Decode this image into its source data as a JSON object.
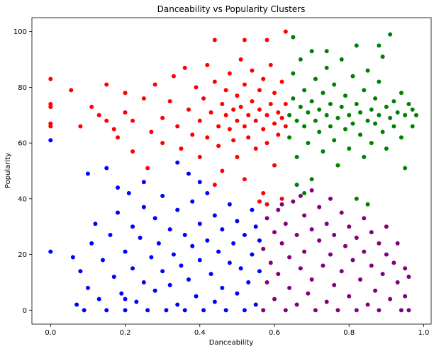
{
  "chart_data": {
    "type": "scatter",
    "title": "Danceability vs Popularity Clusters",
    "xlabel": "Danceability",
    "ylabel": "Popularity",
    "xlim": [
      -0.05,
      1.02
    ],
    "ylim": [
      -5,
      105
    ],
    "xticks": [
      0.0,
      0.2,
      0.4,
      0.6,
      0.8,
      1.0
    ],
    "xtick_labels": [
      "0.0",
      "0.2",
      "0.4",
      "0.6",
      "0.8",
      "1.0"
    ],
    "yticks": [
      0,
      20,
      40,
      60,
      80,
      100
    ],
    "ytick_labels": [
      "0",
      "20",
      "40",
      "60",
      "80",
      "100"
    ],
    "grid": false,
    "legend": "none",
    "series": [
      {
        "color": "#ff0000",
        "points": [
          [
            0.0,
            83
          ],
          [
            0.0,
            74
          ],
          [
            0.0,
            73
          ],
          [
            0.0,
            67
          ],
          [
            0.0,
            66
          ],
          [
            0.055,
            79
          ],
          [
            0.08,
            66
          ],
          [
            0.11,
            73
          ],
          [
            0.13,
            70
          ],
          [
            0.15,
            68
          ],
          [
            0.15,
            81
          ],
          [
            0.17,
            65
          ],
          [
            0.18,
            62
          ],
          [
            0.2,
            71
          ],
          [
            0.2,
            78
          ],
          [
            0.22,
            68
          ],
          [
            0.22,
            57
          ],
          [
            0.25,
            76
          ],
          [
            0.26,
            51
          ],
          [
            0.27,
            64
          ],
          [
            0.28,
            81
          ],
          [
            0.3,
            69
          ],
          [
            0.3,
            60
          ],
          [
            0.32,
            75
          ],
          [
            0.33,
            84
          ],
          [
            0.34,
            66
          ],
          [
            0.35,
            58
          ],
          [
            0.36,
            87
          ],
          [
            0.37,
            72
          ],
          [
            0.38,
            63
          ],
          [
            0.39,
            80
          ],
          [
            0.4,
            68
          ],
          [
            0.4,
            55
          ],
          [
            0.41,
            76
          ],
          [
            0.42,
            88
          ],
          [
            0.42,
            62
          ],
          [
            0.43,
            71
          ],
          [
            0.44,
            45
          ],
          [
            0.44,
            82
          ],
          [
            0.45,
            66
          ],
          [
            0.45,
            59
          ],
          [
            0.46,
            74
          ],
          [
            0.46,
            50
          ],
          [
            0.47,
            70
          ],
          [
            0.47,
            79
          ],
          [
            0.48,
            65
          ],
          [
            0.48,
            85
          ],
          [
            0.49,
            72
          ],
          [
            0.49,
            61
          ],
          [
            0.5,
            68
          ],
          [
            0.5,
            77
          ],
          [
            0.5,
            55
          ],
          [
            0.51,
            73
          ],
          [
            0.51,
            90
          ],
          [
            0.52,
            66
          ],
          [
            0.52,
            81
          ],
          [
            0.52,
            47
          ],
          [
            0.53,
            70
          ],
          [
            0.53,
            62
          ],
          [
            0.54,
            75
          ],
          [
            0.54,
            86
          ],
          [
            0.55,
            68
          ],
          [
            0.55,
            58
          ],
          [
            0.56,
            72
          ],
          [
            0.56,
            79
          ],
          [
            0.57,
            65
          ],
          [
            0.57,
            83
          ],
          [
            0.57,
            42
          ],
          [
            0.58,
            70
          ],
          [
            0.58,
            60
          ],
          [
            0.59,
            74
          ],
          [
            0.59,
            88
          ],
          [
            0.6,
            67
          ],
          [
            0.6,
            78
          ],
          [
            0.6,
            52
          ],
          [
            0.61,
            71
          ],
          [
            0.61,
            63
          ],
          [
            0.62,
            69
          ],
          [
            0.62,
            82
          ],
          [
            0.62,
            40
          ],
          [
            0.63,
            66
          ],
          [
            0.63,
            74
          ],
          [
            0.63,
            100
          ],
          [
            0.44,
            97
          ],
          [
            0.52,
            97
          ],
          [
            0.58,
            97
          ],
          [
            0.56,
            39
          ],
          [
            0.58,
            38
          ]
        ]
      },
      {
        "color": "#008000",
        "points": [
          [
            0.64,
            70
          ],
          [
            0.64,
            62
          ],
          [
            0.65,
            76
          ],
          [
            0.65,
            85
          ],
          [
            0.66,
            68
          ],
          [
            0.66,
            55
          ],
          [
            0.67,
            73
          ],
          [
            0.67,
            90
          ],
          [
            0.68,
            66
          ],
          [
            0.68,
            79
          ],
          [
            0.69,
            71
          ],
          [
            0.69,
            60
          ],
          [
            0.7,
            75
          ],
          [
            0.7,
            93
          ],
          [
            0.71,
            68
          ],
          [
            0.71,
            83
          ],
          [
            0.72,
            64
          ],
          [
            0.72,
            72
          ],
          [
            0.73,
            78
          ],
          [
            0.73,
            57
          ],
          [
            0.74,
            70
          ],
          [
            0.74,
            87
          ],
          [
            0.75,
            66
          ],
          [
            0.75,
            74
          ],
          [
            0.76,
            61
          ],
          [
            0.76,
            81
          ],
          [
            0.77,
            69
          ],
          [
            0.77,
            52
          ],
          [
            0.78,
            73
          ],
          [
            0.78,
            90
          ],
          [
            0.79,
            65
          ],
          [
            0.79,
            77
          ],
          [
            0.8,
            70
          ],
          [
            0.8,
            58
          ],
          [
            0.81,
            84
          ],
          [
            0.81,
            67
          ],
          [
            0.82,
            74
          ],
          [
            0.82,
            95
          ],
          [
            0.83,
            63
          ],
          [
            0.83,
            71
          ],
          [
            0.84,
            79
          ],
          [
            0.84,
            55
          ],
          [
            0.85,
            68
          ],
          [
            0.85,
            86
          ],
          [
            0.86,
            72
          ],
          [
            0.86,
            60
          ],
          [
            0.87,
            76
          ],
          [
            0.87,
            67
          ],
          [
            0.88,
            82
          ],
          [
            0.88,
            70
          ],
          [
            0.89,
            64
          ],
          [
            0.89,
            91
          ],
          [
            0.9,
            73
          ],
          [
            0.9,
            58
          ],
          [
            0.91,
            69
          ],
          [
            0.91,
            99
          ],
          [
            0.92,
            75
          ],
          [
            0.92,
            66
          ],
          [
            0.93,
            71
          ],
          [
            0.94,
            62
          ],
          [
            0.94,
            78
          ],
          [
            0.95,
            70
          ],
          [
            0.95,
            51
          ],
          [
            0.96,
            74
          ],
          [
            0.97,
            66
          ],
          [
            0.97,
            72
          ],
          [
            0.98,
            70
          ],
          [
            0.66,
            45
          ],
          [
            0.68,
            42
          ],
          [
            0.7,
            47
          ],
          [
            0.82,
            40
          ],
          [
            0.85,
            38
          ],
          [
            0.65,
            98
          ],
          [
            0.74,
            93
          ],
          [
            0.88,
            95
          ]
        ]
      },
      {
        "color": "#0000ff",
        "points": [
          [
            0.0,
            61
          ],
          [
            0.0,
            21
          ],
          [
            0.06,
            19
          ],
          [
            0.07,
            2
          ],
          [
            0.08,
            14
          ],
          [
            0.09,
            0
          ],
          [
            0.1,
            49
          ],
          [
            0.1,
            8
          ],
          [
            0.11,
            24
          ],
          [
            0.12,
            31
          ],
          [
            0.13,
            4
          ],
          [
            0.14,
            18
          ],
          [
            0.15,
            0
          ],
          [
            0.15,
            51
          ],
          [
            0.16,
            27
          ],
          [
            0.17,
            12
          ],
          [
            0.18,
            35
          ],
          [
            0.18,
            44
          ],
          [
            0.19,
            6
          ],
          [
            0.2,
            21
          ],
          [
            0.2,
            0
          ],
          [
            0.21,
            42
          ],
          [
            0.22,
            15
          ],
          [
            0.22,
            30
          ],
          [
            0.23,
            3
          ],
          [
            0.24,
            26
          ],
          [
            0.25,
            10
          ],
          [
            0.25,
            37
          ],
          [
            0.26,
            0
          ],
          [
            0.27,
            19
          ],
          [
            0.28,
            33
          ],
          [
            0.28,
            7
          ],
          [
            0.29,
            24
          ],
          [
            0.3,
            14
          ],
          [
            0.3,
            41
          ],
          [
            0.31,
            0
          ],
          [
            0.32,
            29
          ],
          [
            0.32,
            9
          ],
          [
            0.33,
            20
          ],
          [
            0.34,
            36
          ],
          [
            0.34,
            2
          ],
          [
            0.35,
            16
          ],
          [
            0.36,
            27
          ],
          [
            0.36,
            0
          ],
          [
            0.37,
            11
          ],
          [
            0.38,
            39
          ],
          [
            0.38,
            23
          ],
          [
            0.39,
            5
          ],
          [
            0.4,
            31
          ],
          [
            0.4,
            18
          ],
          [
            0.41,
            0
          ],
          [
            0.42,
            25
          ],
          [
            0.42,
            42
          ],
          [
            0.43,
            13
          ],
          [
            0.44,
            34
          ],
          [
            0.44,
            3
          ],
          [
            0.45,
            21
          ],
          [
            0.46,
            8
          ],
          [
            0.46,
            29
          ],
          [
            0.47,
            0
          ],
          [
            0.48,
            17
          ],
          [
            0.48,
            38
          ],
          [
            0.49,
            24
          ],
          [
            0.5,
            6
          ],
          [
            0.5,
            32
          ],
          [
            0.51,
            15
          ],
          [
            0.52,
            0
          ],
          [
            0.52,
            27
          ],
          [
            0.53,
            10
          ],
          [
            0.54,
            36
          ],
          [
            0.54,
            20
          ],
          [
            0.55,
            2
          ],
          [
            0.55,
            30
          ],
          [
            0.56,
            14
          ],
          [
            0.56,
            25
          ],
          [
            0.34,
            53
          ],
          [
            0.37,
            49
          ],
          [
            0.4,
            46
          ],
          [
            0.25,
            46
          ],
          [
            0.2,
            4
          ]
        ]
      },
      {
        "color": "#800080",
        "points": [
          [
            0.57,
            0
          ],
          [
            0.57,
            22
          ],
          [
            0.58,
            33
          ],
          [
            0.58,
            10
          ],
          [
            0.59,
            17
          ],
          [
            0.6,
            28
          ],
          [
            0.6,
            4
          ],
          [
            0.61,
            36
          ],
          [
            0.61,
            13
          ],
          [
            0.62,
            24
          ],
          [
            0.63,
            0
          ],
          [
            0.63,
            31
          ],
          [
            0.64,
            8
          ],
          [
            0.64,
            19
          ],
          [
            0.65,
            39
          ],
          [
            0.66,
            27
          ],
          [
            0.66,
            2
          ],
          [
            0.67,
            15
          ],
          [
            0.68,
            34
          ],
          [
            0.68,
            21
          ],
          [
            0.69,
            6
          ],
          [
            0.7,
            29
          ],
          [
            0.7,
            11
          ],
          [
            0.71,
            0
          ],
          [
            0.72,
            25
          ],
          [
            0.72,
            37
          ],
          [
            0.73,
            16
          ],
          [
            0.74,
            3
          ],
          [
            0.74,
            31
          ],
          [
            0.75,
            20
          ],
          [
            0.76,
            9
          ],
          [
            0.76,
            27
          ],
          [
            0.77,
            0
          ],
          [
            0.78,
            35
          ],
          [
            0.78,
            14
          ],
          [
            0.79,
            23
          ],
          [
            0.8,
            5
          ],
          [
            0.8,
            30
          ],
          [
            0.81,
            18
          ],
          [
            0.82,
            0
          ],
          [
            0.82,
            26
          ],
          [
            0.83,
            11
          ],
          [
            0.84,
            33
          ],
          [
            0.84,
            21
          ],
          [
            0.85,
            2
          ],
          [
            0.86,
            16
          ],
          [
            0.86,
            28
          ],
          [
            0.87,
            7
          ],
          [
            0.88,
            24
          ],
          [
            0.88,
            0
          ],
          [
            0.89,
            13
          ],
          [
            0.9,
            20
          ],
          [
            0.9,
            30
          ],
          [
            0.91,
            4
          ],
          [
            0.92,
            17
          ],
          [
            0.93,
            10
          ],
          [
            0.93,
            24
          ],
          [
            0.94,
            0
          ],
          [
            0.95,
            15
          ],
          [
            0.95,
            5
          ],
          [
            0.96,
            12
          ],
          [
            0.96,
            0
          ],
          [
            0.7,
            43
          ],
          [
            0.67,
            41
          ],
          [
            0.62,
            38
          ],
          [
            0.75,
            40
          ]
        ]
      }
    ]
  }
}
